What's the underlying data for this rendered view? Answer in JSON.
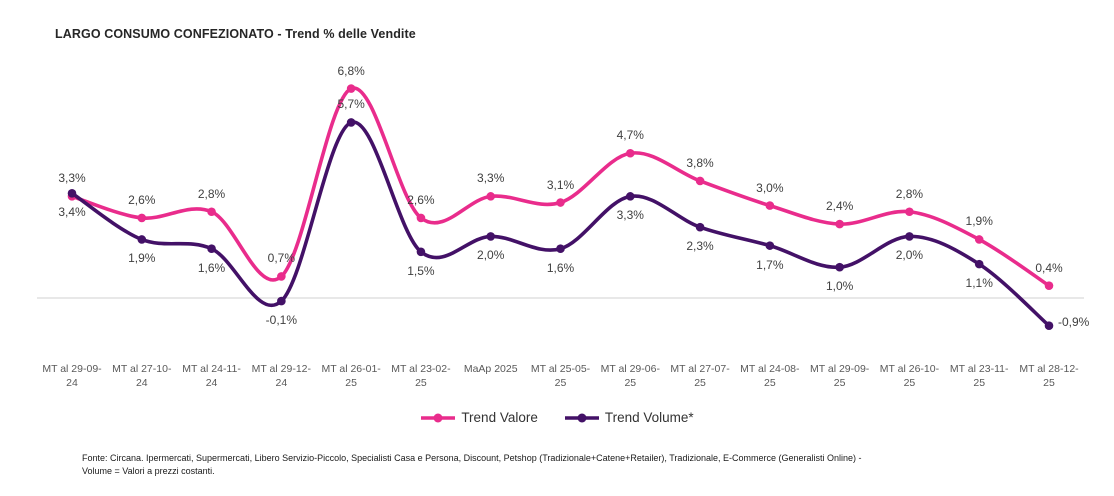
{
  "title": "LARGO CONSUMO CONFEZIONATO - Trend % delle Vendite",
  "chart_data": {
    "type": "line",
    "categories": [
      "MT al 29-09-\n24",
      "MT al 27-10-\n24",
      "MT al 24-11-\n24",
      "MT al 29-12-\n24",
      "MT al 26-01-\n25",
      "MT al 23-02-\n25",
      "MaAp 2025",
      "MT al 25-05-\n25",
      "MT al 29-06-\n25",
      "MT al 27-07-\n25",
      "MT al 24-08-\n25",
      "MT al 29-09-\n25",
      "MT al 26-10-\n25",
      "MT al 23-11-\n25",
      "MT al 28-12-\n25"
    ],
    "series": [
      {
        "name": "Trend Valore",
        "color": "#E92C8C",
        "values": [
          3.3,
          2.6,
          2.8,
          0.7,
          6.8,
          2.6,
          3.3,
          3.1,
          4.7,
          3.8,
          3.0,
          2.4,
          2.8,
          1.9,
          0.4
        ],
        "labels": [
          "3,3%",
          "2,6%",
          "2,8%",
          "0,7%",
          "6,8%",
          "2,6%",
          "3,3%",
          "3,1%",
          "4,7%",
          "3,8%",
          "3,0%",
          "2,4%",
          "2,8%",
          "1,9%",
          "0,4%"
        ],
        "label_sides": [
          "above",
          "above",
          "above",
          "above",
          "above",
          "above",
          "above",
          "above",
          "above",
          "above",
          "above",
          "above",
          "above",
          "above",
          "above"
        ]
      },
      {
        "name": "Trend Volume*",
        "color": "#431167",
        "values": [
          3.4,
          1.9,
          1.6,
          -0.1,
          5.7,
          1.5,
          2.0,
          1.6,
          3.3,
          2.3,
          1.7,
          1.0,
          2.0,
          1.1,
          -0.9
        ],
        "labels": [
          "3,4%",
          "1,9%",
          "1,6%",
          "-0,1%",
          "5,7%",
          "1,5%",
          "2,0%",
          "1,6%",
          "3,3%",
          "2,3%",
          "1,7%",
          "1,0%",
          "2,0%",
          "1,1%",
          "-0,9%"
        ],
        "label_sides": [
          "below",
          "below",
          "below",
          "below",
          "above",
          "below",
          "below",
          "below",
          "below",
          "below",
          "below",
          "below",
          "below",
          "below",
          "right"
        ]
      }
    ],
    "xlabel": "",
    "ylabel": "",
    "ylim": [
      -2,
      8
    ],
    "grid": "zero-line-only",
    "zero_line_color": "#D9D9D9",
    "legend_position": "bottom"
  },
  "footer": {
    "line1": "Fonte: Circana. Ipermercati, Supermercati, Libero Servizio-Piccolo, Specialisti Casa e Persona, Discount, Petshop (Tradizionale+Catene+Retailer), Tradizionale, E-Commerce (Generalisti Online) -",
    "line2": "Volume = Valori a prezzi costanti."
  }
}
